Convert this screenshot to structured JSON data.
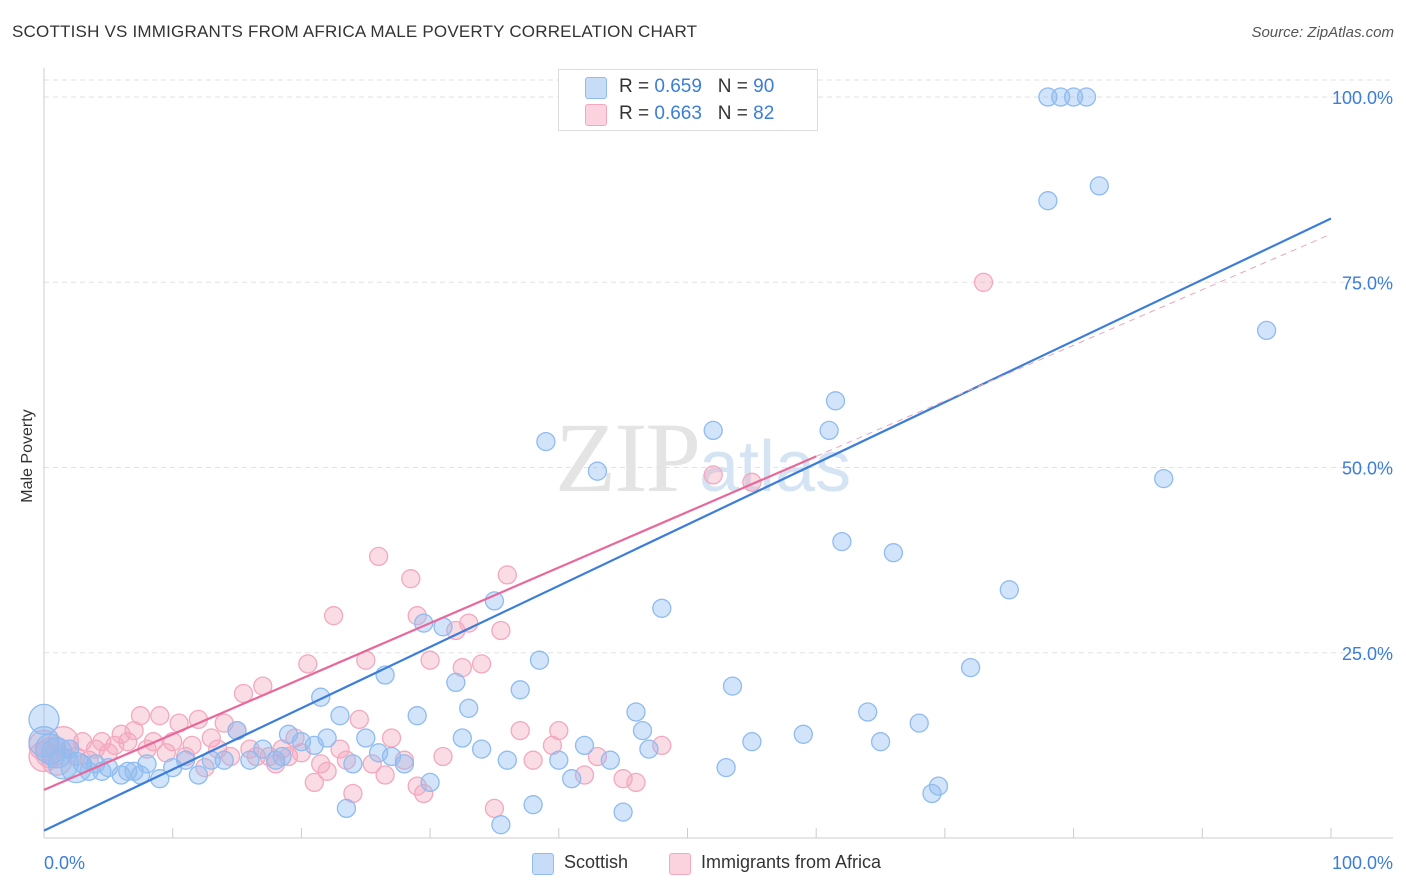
{
  "header": {
    "title": "SCOTTISH VS IMMIGRANTS FROM AFRICA MALE POVERTY CORRELATION CHART",
    "source": "Source: ZipAtlas.com"
  },
  "watermark": {
    "zip": "ZIP",
    "atlas": "atlas"
  },
  "legend": {
    "rows": [
      {
        "r_label": "R = ",
        "r_value": "0.659",
        "n_label": "N = ",
        "n_value": "90",
        "color": "#8fbbf0"
      },
      {
        "r_label": "R = ",
        "r_value": "0.663",
        "n_label": "N = ",
        "n_value": "82",
        "color": "#f3a8bf"
      }
    ]
  },
  "bottom_legend": [
    {
      "label": "Scottish",
      "color": "#8fbbf0"
    },
    {
      "label": "Immigrants from Africa",
      "color": "#f3a8bf"
    }
  ],
  "chart_data": {
    "type": "scatter",
    "title": "SCOTTISH VS IMMIGRANTS FROM AFRICA MALE POVERTY CORRELATION CHART",
    "xlabel": "",
    "ylabel": "Male Poverty",
    "xlim": [
      0,
      100
    ],
    "ylim": [
      0,
      100
    ],
    "x_tick_labels": [
      "0.0%",
      "100.0%"
    ],
    "y_ticks": [
      25,
      50,
      75,
      100
    ],
    "y_tick_labels": [
      "25.0%",
      "50.0%",
      "75.0%",
      "100.0%"
    ],
    "grid": true,
    "legend_position": "top-center",
    "series": [
      {
        "name": "Scottish",
        "color": "#3b7dd8",
        "fill": "#8fbbf0",
        "r": 0.659,
        "n": 90,
        "trend": {
          "x0": 0,
          "y0": 1.0,
          "x1": 100,
          "y1": 83.6
        },
        "points": [
          [
            0,
            16,
            2
          ],
          [
            0,
            13,
            2
          ],
          [
            0.5,
            12,
            2
          ],
          [
            1,
            11.5,
            2
          ],
          [
            1.5,
            10,
            2
          ],
          [
            2,
            12,
            1
          ],
          [
            2.5,
            9.5,
            2
          ],
          [
            3,
            10,
            1
          ],
          [
            3.5,
            9,
            1
          ],
          [
            4,
            10,
            1
          ],
          [
            4.5,
            9,
            1
          ],
          [
            5,
            9.5,
            1
          ],
          [
            6,
            8.5,
            1
          ],
          [
            6.5,
            9,
            1
          ],
          [
            7,
            9,
            1
          ],
          [
            7.5,
            8.5,
            1
          ],
          [
            8,
            10,
            1
          ],
          [
            9,
            8,
            1
          ],
          [
            10,
            9.5,
            1
          ],
          [
            11,
            10.5,
            1
          ],
          [
            12,
            8.5,
            1
          ],
          [
            13,
            10.5,
            1
          ],
          [
            14,
            10.5,
            1
          ],
          [
            15,
            14.5,
            1
          ],
          [
            16,
            10.5,
            1
          ],
          [
            17,
            12,
            1
          ],
          [
            18,
            10.5,
            1
          ],
          [
            18.5,
            11,
            1
          ],
          [
            19,
            14,
            1
          ],
          [
            20,
            13,
            1
          ],
          [
            21,
            12.5,
            1
          ],
          [
            21.5,
            19,
            1
          ],
          [
            22,
            13.5,
            1
          ],
          [
            23,
            16.5,
            1
          ],
          [
            23.5,
            4,
            1
          ],
          [
            24,
            10,
            1
          ],
          [
            25,
            13.5,
            1
          ],
          [
            26,
            11.5,
            1
          ],
          [
            26.5,
            22,
            1
          ],
          [
            27,
            11,
            1
          ],
          [
            28,
            10,
            1
          ],
          [
            29,
            16.5,
            1
          ],
          [
            29.5,
            29,
            1
          ],
          [
            30,
            7.5,
            1
          ],
          [
            31,
            28.5,
            1
          ],
          [
            32,
            21,
            1
          ],
          [
            32.5,
            13.5,
            1
          ],
          [
            33,
            17.5,
            1
          ],
          [
            34,
            12,
            1
          ],
          [
            35,
            32,
            1
          ],
          [
            35.5,
            1.8,
            1
          ],
          [
            36,
            10.5,
            1
          ],
          [
            37,
            20,
            1
          ],
          [
            38,
            4.5,
            1
          ],
          [
            38.5,
            24,
            1
          ],
          [
            39,
            53.5,
            1
          ],
          [
            40,
            10.5,
            1
          ],
          [
            41,
            8,
            1
          ],
          [
            42,
            12.5,
            1
          ],
          [
            43,
            49.5,
            1
          ],
          [
            44,
            10.5,
            1
          ],
          [
            45,
            3.5,
            1
          ],
          [
            46,
            17,
            1
          ],
          [
            46.5,
            14.5,
            1
          ],
          [
            47,
            12,
            1
          ],
          [
            48,
            31,
            1
          ],
          [
            52,
            55,
            1
          ],
          [
            53,
            9.5,
            1
          ],
          [
            53.5,
            20.5,
            1
          ],
          [
            55,
            13,
            1
          ],
          [
            59,
            14,
            1
          ],
          [
            61,
            55,
            1
          ],
          [
            61.5,
            59,
            1
          ],
          [
            62,
            40,
            1
          ],
          [
            64,
            17,
            1
          ],
          [
            65,
            13,
            1
          ],
          [
            66,
            38.5,
            1
          ],
          [
            68,
            15.5,
            1
          ],
          [
            69,
            6,
            1
          ],
          [
            69.5,
            7,
            1
          ],
          [
            72,
            23,
            1
          ],
          [
            75,
            33.5,
            1
          ],
          [
            78,
            100,
            1
          ],
          [
            79,
            100,
            1
          ],
          [
            80,
            100,
            1
          ],
          [
            81,
            100,
            1
          ],
          [
            78,
            86,
            1
          ],
          [
            82,
            88,
            1
          ],
          [
            87,
            48.5,
            1
          ],
          [
            95,
            68.5,
            1
          ]
        ]
      },
      {
        "name": "Immigrants from Africa",
        "color": "#e8689a",
        "fill": "#f3a8bf",
        "r": 0.663,
        "n": 82,
        "trend": {
          "x0": 0,
          "y0": 6.5,
          "x1": 60,
          "y1": 51.5
        },
        "trend_extrapolated": {
          "x0": 60,
          "y0": 51.5,
          "x1": 100,
          "y1": 81.5
        },
        "points": [
          [
            0,
            11,
            2
          ],
          [
            0,
            12.5,
            2
          ],
          [
            0.5,
            11.5,
            2
          ],
          [
            1,
            10.5,
            2
          ],
          [
            1.5,
            13,
            2
          ],
          [
            2,
            12,
            1
          ],
          [
            2.5,
            11,
            1
          ],
          [
            3,
            13,
            1
          ],
          [
            3.5,
            10.5,
            1
          ],
          [
            4,
            12,
            1
          ],
          [
            4.5,
            13,
            1
          ],
          [
            5,
            11.5,
            1
          ],
          [
            5.5,
            12.5,
            1
          ],
          [
            6,
            14,
            1
          ],
          [
            6.5,
            13,
            1
          ],
          [
            7,
            14.5,
            1
          ],
          [
            7.5,
            16.5,
            1
          ],
          [
            8,
            12,
            1
          ],
          [
            8.5,
            13,
            1
          ],
          [
            9,
            16.5,
            1
          ],
          [
            9.5,
            11.5,
            1
          ],
          [
            10,
            13,
            1
          ],
          [
            10.5,
            15.5,
            1
          ],
          [
            11,
            11,
            1
          ],
          [
            11.5,
            12.5,
            1
          ],
          [
            12,
            16,
            1
          ],
          [
            12.5,
            9.5,
            1
          ],
          [
            13,
            13.5,
            1
          ],
          [
            13.5,
            12,
            1
          ],
          [
            14,
            15.5,
            1
          ],
          [
            14.5,
            11,
            1
          ],
          [
            15,
            14.5,
            1
          ],
          [
            15.5,
            19.5,
            1
          ],
          [
            16,
            12,
            1
          ],
          [
            16.5,
            11,
            1
          ],
          [
            17,
            20.5,
            1
          ],
          [
            17.5,
            11,
            1
          ],
          [
            18,
            10,
            1
          ],
          [
            18.5,
            12,
            1
          ],
          [
            19,
            11,
            1
          ],
          [
            19.5,
            13.5,
            1
          ],
          [
            20,
            11.5,
            1
          ],
          [
            20.5,
            23.5,
            1
          ],
          [
            21,
            7.5,
            1
          ],
          [
            21.5,
            10,
            1
          ],
          [
            22,
            9,
            1
          ],
          [
            22.5,
            30,
            1
          ],
          [
            23,
            12,
            1
          ],
          [
            23.5,
            10.5,
            1
          ],
          [
            24,
            6,
            1
          ],
          [
            24.5,
            16,
            1
          ],
          [
            25,
            24,
            1
          ],
          [
            25.5,
            10,
            1
          ],
          [
            26,
            38,
            1
          ],
          [
            26.5,
            8.5,
            1
          ],
          [
            27,
            13.5,
            1
          ],
          [
            28,
            10.5,
            1
          ],
          [
            28.5,
            35,
            1
          ],
          [
            29,
            7,
            1
          ],
          [
            29.5,
            6,
            1
          ],
          [
            29,
            30,
            1
          ],
          [
            30,
            24,
            1
          ],
          [
            31,
            11,
            1
          ],
          [
            32,
            28,
            1
          ],
          [
            32.5,
            23,
            1
          ],
          [
            33,
            29,
            1
          ],
          [
            34,
            23.5,
            1
          ],
          [
            35,
            4,
            1
          ],
          [
            35.5,
            28,
            1
          ],
          [
            36,
            35.5,
            1
          ],
          [
            37,
            14.5,
            1
          ],
          [
            38,
            10.5,
            1
          ],
          [
            39.5,
            12.5,
            1
          ],
          [
            40,
            14.5,
            1
          ],
          [
            42,
            8.5,
            1
          ],
          [
            43,
            11,
            1
          ],
          [
            45,
            8,
            1
          ],
          [
            46,
            7.5,
            1
          ],
          [
            48,
            12.5,
            1
          ],
          [
            52,
            49,
            1
          ],
          [
            55,
            48,
            1
          ],
          [
            73,
            75,
            1
          ]
        ]
      }
    ]
  }
}
